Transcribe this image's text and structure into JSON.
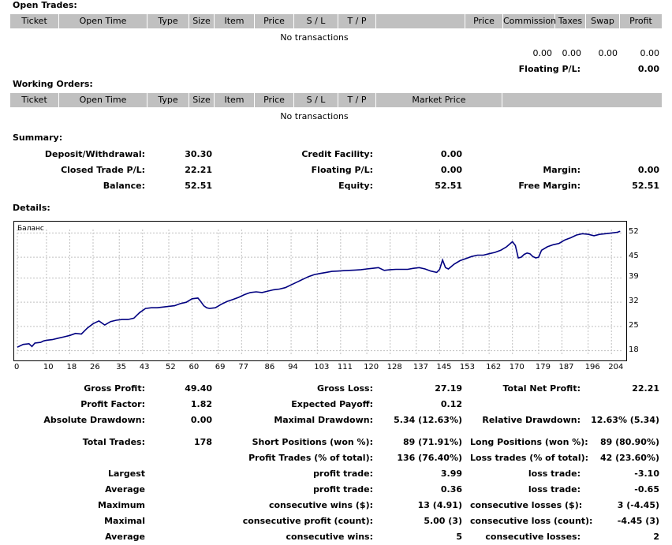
{
  "open_trades": {
    "title": "Open Trades:",
    "columns": [
      "Ticket",
      "Open Time",
      "Type",
      "Size",
      "Item",
      "Price",
      "S / L",
      "T / P",
      "",
      "Price",
      "Commission",
      "Taxes",
      "Swap",
      "Profit"
    ],
    "empty_text": "No transactions",
    "totals": [
      "0.00",
      "0.00",
      "0.00",
      "0.00"
    ],
    "floating_label": "Floating P/L:",
    "floating_value": "0.00"
  },
  "working_orders": {
    "title": "Working Orders:",
    "columns": [
      "Ticket",
      "Open Time",
      "Type",
      "Size",
      "Item",
      "Price",
      "S / L",
      "T / P",
      "Market Price",
      ""
    ],
    "empty_text": "No transactions"
  },
  "summary": {
    "title": "Summary:",
    "deposit_label": "Deposit/Withdrawal:",
    "deposit_value": "30.30",
    "credit_label": "Credit Facility:",
    "credit_value": "0.00",
    "closed_label": "Closed Trade P/L:",
    "closed_value": "22.21",
    "floating_label": "Floating P/L:",
    "floating_value": "0.00",
    "margin_label": "Margin:",
    "margin_value": "0.00",
    "balance_label": "Balance:",
    "balance_value": "52.51",
    "equity_label": "Equity:",
    "equity_value": "52.51",
    "free_margin_label": "Free Margin:",
    "free_margin_value": "52.51"
  },
  "details": {
    "title": "Details:"
  },
  "chart_data": {
    "type": "line",
    "title": "Баланс",
    "line_color": "#000080",
    "x_ticks": [
      0,
      10,
      18,
      26,
      35,
      43,
      52,
      60,
      69,
      77,
      86,
      94,
      103,
      111,
      120,
      128,
      137,
      145,
      153,
      162,
      170,
      179,
      187,
      196,
      204
    ],
    "y_ticks": [
      52,
      45,
      39,
      32,
      25,
      18
    ],
    "xlim": [
      0,
      208
    ],
    "ylim": [
      17,
      53
    ],
    "grid": true,
    "series": [
      {
        "x": [
          0,
          2,
          4,
          5,
          6,
          8,
          9,
          10,
          12,
          14,
          16,
          18,
          20,
          22,
          24,
          26,
          28,
          30,
          32,
          34,
          36,
          38,
          40,
          42,
          44,
          46,
          48,
          50,
          52,
          54,
          56,
          58,
          60,
          62,
          63,
          64,
          65,
          66,
          68,
          70,
          72,
          74,
          76,
          78,
          80,
          82,
          84,
          86,
          88,
          90,
          92,
          94,
          96,
          98,
          100,
          102,
          104,
          106,
          108,
          110,
          112,
          114,
          116,
          118,
          120,
          122,
          124,
          126,
          128,
          130,
          132,
          134,
          136,
          138,
          140,
          142,
          144,
          145,
          146,
          147,
          148,
          150,
          152,
          154,
          156,
          158,
          160,
          162,
          164,
          166,
          168,
          170,
          171,
          172,
          173,
          174,
          175,
          176,
          177,
          178,
          179,
          180,
          182,
          184,
          186,
          188,
          190,
          192,
          194,
          196,
          198,
          200,
          202,
          204,
          206,
          207
        ],
        "y": [
          19.0,
          19.8,
          20.0,
          19.2,
          20.2,
          20.4,
          20.8,
          21.0,
          21.2,
          21.6,
          22.0,
          22.4,
          23.0,
          22.8,
          24.5,
          25.8,
          26.6,
          25.4,
          26.4,
          26.8,
          27.0,
          27.0,
          27.4,
          29.0,
          30.2,
          30.4,
          30.4,
          30.6,
          30.8,
          31.0,
          31.6,
          32.0,
          33.0,
          33.2,
          32.2,
          31.0,
          30.4,
          30.2,
          30.4,
          31.4,
          32.2,
          32.8,
          33.4,
          34.2,
          34.8,
          35.0,
          34.8,
          35.2,
          35.6,
          35.8,
          36.2,
          37.0,
          37.8,
          38.6,
          39.4,
          40.0,
          40.3,
          40.6,
          40.9,
          41.0,
          41.1,
          41.2,
          41.3,
          41.4,
          41.6,
          41.8,
          42.0,
          41.2,
          41.4,
          41.5,
          41.5,
          41.5,
          41.8,
          42.0,
          41.6,
          41.0,
          40.6,
          41.5,
          44.2,
          42.0,
          41.6,
          43.0,
          44.0,
          44.6,
          45.2,
          45.6,
          45.6,
          46.0,
          46.4,
          47.0,
          48.0,
          49.5,
          48.4,
          44.8,
          45.0,
          45.8,
          46.2,
          46.0,
          45.2,
          44.8,
          45.0,
          47.0,
          48.0,
          48.6,
          49.0,
          50.0,
          50.6,
          51.4,
          51.8,
          51.6,
          51.2,
          51.6,
          51.8,
          52.0,
          52.2,
          52.5
        ]
      }
    ]
  },
  "stats": {
    "gross_profit_label": "Gross Profit:",
    "gross_profit": "49.40",
    "gross_loss_label": "Gross Loss:",
    "gross_loss": "27.19",
    "total_net_label": "Total Net Profit:",
    "total_net": "22.21",
    "profit_factor_label": "Profit Factor:",
    "profit_factor": "1.82",
    "expected_payoff_label": "Expected Payoff:",
    "expected_payoff": "0.12",
    "abs_dd_label": "Absolute Drawdown:",
    "abs_dd": "0.00",
    "max_dd_label": "Maximal Drawdown:",
    "max_dd": "5.34 (12.63%)",
    "rel_dd_label": "Relative Drawdown:",
    "rel_dd": "12.63% (5.34)",
    "total_trades_label": "Total Trades:",
    "total_trades": "178",
    "short_label": "Short Positions (won %):",
    "short": "89 (71.91%)",
    "long_label": "Long Positions (won %):",
    "long": "89 (80.90%)",
    "profit_trades_label": "Profit Trades (% of total):",
    "profit_trades": "136 (76.40%)",
    "loss_trades_label": "Loss trades (% of total):",
    "loss_trades": "42 (23.60%)",
    "largest_label": "Largest",
    "largest_profit_label": "profit trade:",
    "largest_profit": "3.99",
    "largest_loss_label": "loss trade:",
    "largest_loss": "-3.10",
    "average_label": "Average",
    "average_profit_label": "profit trade:",
    "average_profit": "0.36",
    "average_loss_label": "loss trade:",
    "average_loss": "-0.65",
    "maximum_label": "Maximum",
    "max_cons_wins_label": "consecutive wins ($):",
    "max_cons_wins": "13 (4.91)",
    "max_cons_losses_label": "consecutive losses ($):",
    "max_cons_losses": "3 (-4.45)",
    "maximal_label": "Maximal",
    "maximal_profit_label": "consecutive profit (count):",
    "maximal_profit": "5.00 (3)",
    "maximal_loss_label": "consecutive loss (count):",
    "maximal_loss": "-4.45 (3)",
    "average2_label": "Average",
    "avg_cons_wins_label": "consecutive wins:",
    "avg_cons_wins": "5",
    "avg_cons_losses_label": "consecutive losses:",
    "avg_cons_losses": "2"
  }
}
